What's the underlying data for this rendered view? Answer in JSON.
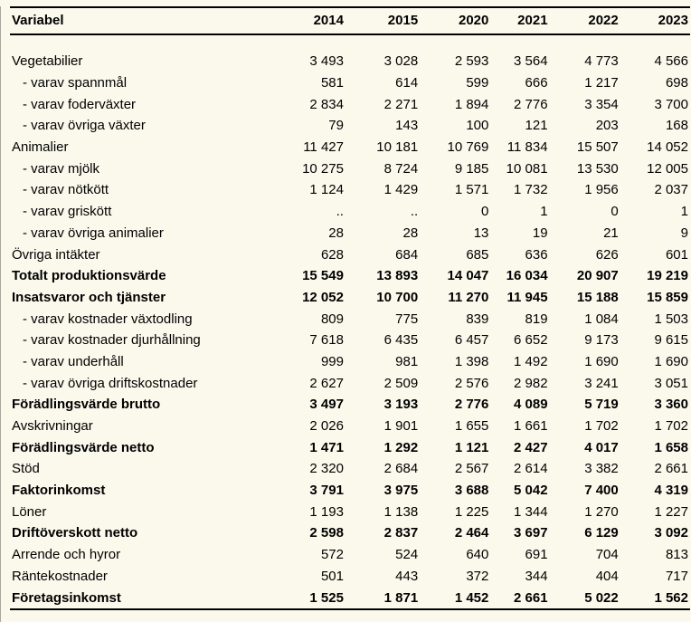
{
  "colors": {
    "background": "#FBF9EC",
    "text": "#000000",
    "rule": "#000000"
  },
  "table": {
    "header": {
      "label": "Variabel",
      "years": [
        "2014",
        "2015",
        "2020",
        "2021",
        "2022",
        "2023"
      ]
    },
    "rows": [
      {
        "label": "Vegetabilier",
        "style": "normal",
        "values": [
          "3 493",
          "3 028",
          "2 593",
          "3 564",
          "4 773",
          "4 566"
        ]
      },
      {
        "label": "- varav spannmål",
        "style": "sub",
        "values": [
          "581",
          "614",
          "599",
          "666",
          "1 217",
          "698"
        ]
      },
      {
        "label": "- varav foderväxter",
        "style": "sub",
        "values": [
          "2 834",
          "2 271",
          "1 894",
          "2 776",
          "3 354",
          "3 700"
        ]
      },
      {
        "label": "- varav övriga växter",
        "style": "sub",
        "values": [
          "79",
          "143",
          "100",
          "121",
          "203",
          "168"
        ]
      },
      {
        "label": "Animalier",
        "style": "normal",
        "values": [
          "11 427",
          "10 181",
          "10 769",
          "11 834",
          "15 507",
          "14 052"
        ]
      },
      {
        "label": "- varav mjölk",
        "style": "sub",
        "values": [
          "10 275",
          "8 724",
          "9 185",
          "10 081",
          "13 530",
          "12 005"
        ]
      },
      {
        "label": "- varav nötkött",
        "style": "sub",
        "values": [
          "1 124",
          "1 429",
          "1 571",
          "1 732",
          "1 956",
          "2 037"
        ]
      },
      {
        "label": "- varav griskött",
        "style": "sub",
        "values": [
          "..",
          "..",
          "0",
          "1",
          "0",
          "1"
        ]
      },
      {
        "label": "- varav övriga animalier",
        "style": "sub",
        "values": [
          "28",
          "28",
          "13",
          "19",
          "21",
          "9"
        ]
      },
      {
        "label": "Övriga intäkter",
        "style": "normal",
        "values": [
          "628",
          "684",
          "685",
          "636",
          "626",
          "601"
        ]
      },
      {
        "label": "Totalt produktionsvärde",
        "style": "bold",
        "values": [
          "15 549",
          "13 893",
          "14 047",
          "16 034",
          "20 907",
          "19 219"
        ]
      },
      {
        "label": "Insatsvaror och tjänster",
        "style": "bold",
        "values": [
          "12 052",
          "10 700",
          "11 270",
          "11 945",
          "15 188",
          "15 859"
        ]
      },
      {
        "label": "- varav kostnader växtodling",
        "style": "sub",
        "values": [
          "809",
          "775",
          "839",
          "819",
          "1 084",
          "1 503"
        ]
      },
      {
        "label": "- varav kostnader djurhållning",
        "style": "sub",
        "values": [
          "7 618",
          "6 435",
          "6 457",
          "6 652",
          "9 173",
          "9 615"
        ]
      },
      {
        "label": "- varav underhåll",
        "style": "sub",
        "values": [
          "999",
          "981",
          "1 398",
          "1 492",
          "1 690",
          "1 690"
        ]
      },
      {
        "label": "- varav övriga driftskostnader",
        "style": "sub",
        "values": [
          "2 627",
          "2 509",
          "2 576",
          "2 982",
          "3 241",
          "3 051"
        ]
      },
      {
        "label": "Förädlingsvärde brutto",
        "style": "bold",
        "values": [
          "3 497",
          "3 193",
          "2 776",
          "4 089",
          "5 719",
          "3 360"
        ]
      },
      {
        "label": "Avskrivningar",
        "style": "normal",
        "values": [
          "2 026",
          "1 901",
          "1 655",
          "1 661",
          "1 702",
          "1 702"
        ]
      },
      {
        "label": "Förädlingsvärde netto",
        "style": "bold",
        "values": [
          "1 471",
          "1 292",
          "1 121",
          "2 427",
          "4 017",
          "1 658"
        ]
      },
      {
        "label": "Stöd",
        "style": "normal",
        "values": [
          "2 320",
          "2 684",
          "2 567",
          "2 614",
          "3 382",
          "2 661"
        ]
      },
      {
        "label": "Faktorinkomst",
        "style": "bold",
        "values": [
          "3 791",
          "3 975",
          "3 688",
          "5 042",
          "7 400",
          "4 319"
        ]
      },
      {
        "label": "Löner",
        "style": "normal",
        "values": [
          "1 193",
          "1 138",
          "1 225",
          "1 344",
          "1 270",
          "1 227"
        ]
      },
      {
        "label": "Driftöverskott netto",
        "style": "bold",
        "values": [
          "2 598",
          "2 837",
          "2 464",
          "3 697",
          "6 129",
          "3 092"
        ]
      },
      {
        "label": "Arrende och hyror",
        "style": "normal",
        "values": [
          "572",
          "524",
          "640",
          "691",
          "704",
          "813"
        ]
      },
      {
        "label": "Räntekostnader",
        "style": "normal",
        "values": [
          "501",
          "443",
          "372",
          "344",
          "404",
          "717"
        ]
      },
      {
        "label": "Företagsinkomst",
        "style": "bold",
        "values": [
          "1 525",
          "1 871",
          "1 452",
          "2 661",
          "5 022",
          "1 562"
        ]
      }
    ]
  }
}
